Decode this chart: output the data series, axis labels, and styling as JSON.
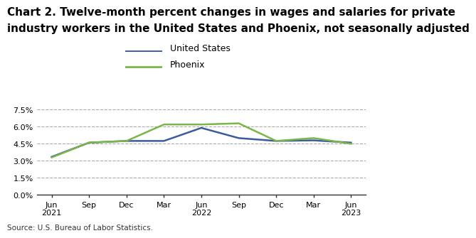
{
  "title_line1": "Chart 2. Twelve-month percent changes in wages and salaries for private",
  "title_line2": "industry workers in the United States and Phoenix, not seasonally adjusted",
  "x_labels": [
    "Jun\n2021",
    "Sep",
    "Dec",
    "Mar",
    "Jun\n2022",
    "Sep",
    "Dec",
    "Mar",
    "Jun\n2023"
  ],
  "us_values": [
    3.35,
    4.6,
    4.75,
    4.75,
    5.9,
    5.0,
    4.75,
    4.8,
    4.6
  ],
  "phoenix_values": [
    3.3,
    4.6,
    4.75,
    6.2,
    6.2,
    6.3,
    4.75,
    5.0,
    4.5
  ],
  "us_color": "#3a5ba0",
  "phoenix_color": "#7ab648",
  "ylim_min": 0.0,
  "ylim_max": 0.09,
  "yticks": [
    0.0,
    0.015,
    0.03,
    0.045,
    0.06,
    0.075
  ],
  "ytick_labels": [
    "0.0%",
    "1.5%",
    "3.0%",
    "4.5%",
    "6.0%",
    "7.5%"
  ],
  "source_text": "Source: U.S. Bureau of Labor Statistics.",
  "legend_us": "United States",
  "legend_phoenix": "Phoenix",
  "background_color": "#ffffff",
  "grid_color": "#aaaaaa",
  "title_fontsize": 11,
  "legend_fontsize": 9,
  "tick_fontsize": 8,
  "source_fontsize": 7.5
}
